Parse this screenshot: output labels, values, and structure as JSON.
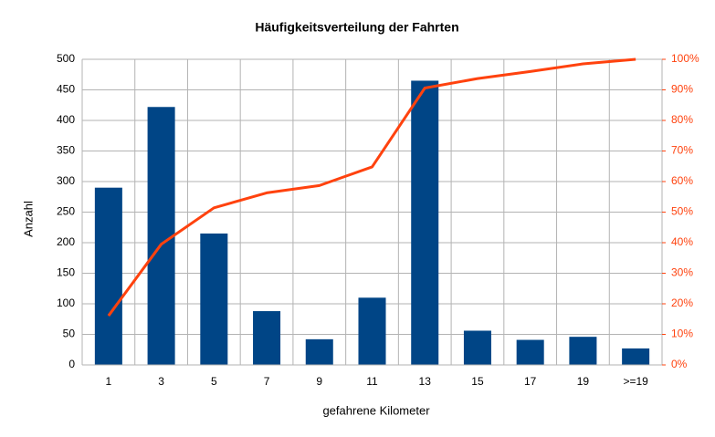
{
  "chart_data": {
    "type": "bar_pareto",
    "title": "Häufigkeitsverteilung der Fahrten",
    "x_label": "gefahrene Kilometer",
    "y_label": "Anzahl",
    "categories": [
      "1",
      "3",
      "5",
      "7",
      "9",
      "11",
      "13",
      "15",
      "17",
      "19",
      ">=19"
    ],
    "series": [
      {
        "color": "#004586",
        "values": [
          290,
          422,
          215,
          88,
          42,
          110,
          465,
          56,
          41,
          46,
          27
        ]
      },
      {
        "color": "#ff420e",
        "axis": "y2",
        "values": [
          16.1,
          39.5,
          51.4,
          56.3,
          58.7,
          64.8,
          90.6,
          93.7,
          96.0,
          98.5,
          100
        ]
      }
    ],
    "ylim": [
      0,
      500
    ],
    "yticks": [
      0,
      50,
      100,
      150,
      200,
      250,
      300,
      350,
      400,
      450,
      500
    ],
    "y2lim": [
      0,
      100
    ],
    "y2ticks": [
      {
        "value": 0,
        "label": "0%"
      },
      {
        "value": 10,
        "label": "10%"
      },
      {
        "value": 20,
        "label": "20%"
      },
      {
        "value": 30,
        "label": "30%"
      },
      {
        "value": 40,
        "label": "40%"
      },
      {
        "value": 50,
        "label": "50%"
      },
      {
        "value": 60,
        "label": "60%"
      },
      {
        "value": 70,
        "label": "70%"
      },
      {
        "value": 80,
        "label": "80%"
      },
      {
        "value": 90,
        "label": "90%"
      },
      {
        "value": 100,
        "label": "100%"
      }
    ],
    "y2_color": "#ff420e",
    "grid": true
  }
}
